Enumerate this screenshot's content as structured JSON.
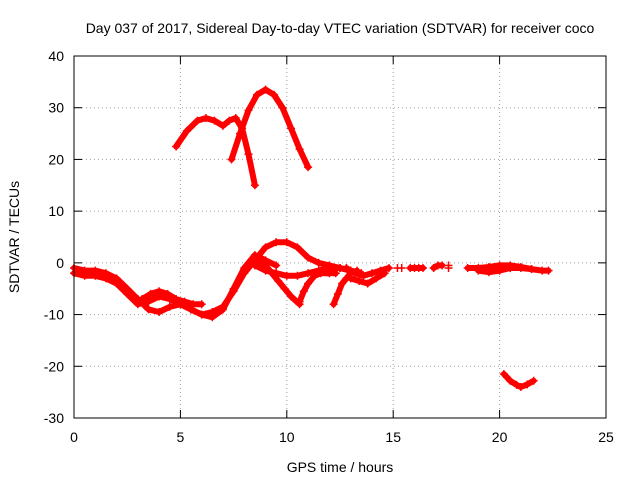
{
  "chart_data": {
    "type": "scatter",
    "title": "Day 037 of 2017, Sidereal Day-to-day VTEC variation (SDTVAR) for receiver coco",
    "xlabel": "GPS time / hours",
    "ylabel": "SDTVAR / TECUs",
    "xlim": [
      0,
      25
    ],
    "ylim": [
      -30,
      40
    ],
    "xticks": [
      0,
      5,
      10,
      15,
      20,
      25
    ],
    "yticks": [
      -30,
      -20,
      -10,
      0,
      10,
      20,
      30,
      40
    ],
    "grid": true,
    "marker": "plus",
    "colors": {
      "series": "#ff0000",
      "grid": "#a0a0a0",
      "axis": "#000000"
    },
    "series": [
      {
        "name": "arc-upper-left",
        "x": [
          4.8,
          5.3,
          5.8,
          6.2,
          6.6,
          7.0,
          7.3,
          7.6,
          7.9,
          8.2,
          8.5
        ],
        "y": [
          22.5,
          25.5,
          27.5,
          28,
          27.5,
          26.5,
          27.5,
          28,
          26,
          21,
          15
        ]
      },
      {
        "name": "arc-upper-right",
        "x": [
          7.4,
          7.8,
          8.2,
          8.6,
          9.0,
          9.4,
          9.8,
          10.2,
          10.6,
          11.0
        ],
        "y": [
          20,
          25,
          29.5,
          32.5,
          33.5,
          32.5,
          30,
          26,
          22,
          18.5
        ]
      },
      {
        "name": "arc-main-a",
        "x": [
          0.0,
          0.5,
          1.0,
          1.5,
          2.0,
          2.5,
          3.0,
          3.5,
          4.0,
          4.5,
          5.0,
          5.5,
          6.0,
          6.5,
          7.0,
          7.5,
          8.0,
          8.5,
          9.0,
          9.5
        ],
        "y": [
          -1,
          -1.5,
          -1.5,
          -2,
          -3,
          -5,
          -7,
          -9,
          -9.5,
          -8.5,
          -8,
          -9,
          -10,
          -10.5,
          -9,
          -5,
          -1,
          1.5,
          0.5,
          -0.5
        ]
      },
      {
        "name": "arc-main-b",
        "x": [
          0.0,
          0.5,
          1.0,
          1.5,
          2.0,
          2.5,
          3.0,
          3.5,
          4.0,
          4.5,
          5.0,
          5.5,
          6.0,
          6.5,
          7.0,
          7.5,
          8.0,
          8.5,
          9.0
        ],
        "y": [
          -2,
          -2.5,
          -2.5,
          -3,
          -4,
          -6,
          -8,
          -7.5,
          -6.5,
          -7,
          -8,
          -9,
          -10,
          -9.5,
          -8.5,
          -5.5,
          -2,
          0.5,
          -1
        ]
      },
      {
        "name": "arc-bump",
        "x": [
          3.2,
          3.6,
          4.0,
          4.4,
          4.8,
          5.2,
          5.6,
          6.0
        ],
        "y": [
          -7,
          -6,
          -5.5,
          -6,
          -7,
          -7.5,
          -8,
          -8
        ]
      },
      {
        "name": "arc-middle",
        "x": [
          8.6,
          9.0,
          9.5,
          10.0,
          10.5,
          11.0,
          11.5,
          12.0,
          12.5,
          13.0
        ],
        "y": [
          1,
          3,
          4,
          4,
          3,
          1,
          0,
          -0.5,
          -1,
          -1.5
        ]
      },
      {
        "name": "arc-middle-low",
        "x": [
          8.5,
          9.0,
          9.5,
          10.0,
          10.5,
          11.0,
          11.5,
          12.0,
          12.5,
          13.0,
          13.5
        ],
        "y": [
          -0.5,
          -1.5,
          -2,
          -2.5,
          -2.5,
          -2,
          -1.5,
          -1,
          -1,
          -1.5,
          -2
        ]
      },
      {
        "name": "arc-drop-a",
        "x": [
          8.7,
          9.0,
          9.3,
          9.6,
          9.9,
          10.2,
          10.6
        ],
        "y": [
          1,
          -0.5,
          -2,
          -3.5,
          -5,
          -6.5,
          -8
        ]
      },
      {
        "name": "arc-drop-b",
        "x": [
          10.6,
          10.8,
          11.0,
          11.3,
          11.6,
          12.0,
          12.3
        ],
        "y": [
          -7.5,
          -5.5,
          -4,
          -2.5,
          -2,
          -2,
          -2
        ]
      },
      {
        "name": "arc-drop-c",
        "x": [
          12.2,
          12.4,
          12.6,
          12.8,
          13.0,
          13.3
        ],
        "y": [
          -8,
          -6,
          -4,
          -3,
          -2,
          -1.5
        ]
      },
      {
        "name": "arc-right-a",
        "x": [
          12.8,
          13.2,
          13.6,
          14.0,
          14.4,
          14.8
        ],
        "y": [
          -1,
          -2,
          -2.5,
          -2,
          -1.5,
          -1
        ]
      },
      {
        "name": "arc-right-b",
        "x": [
          13.0,
          13.4,
          13.8,
          14.2,
          14.6
        ],
        "y": [
          -3,
          -3.5,
          -4,
          -3,
          -2
        ]
      },
      {
        "name": "arc-seg-1",
        "x": [
          15.8,
          16.0,
          16.2,
          16.4
        ],
        "y": [
          -1,
          -1,
          -1,
          -1
        ]
      },
      {
        "name": "arc-seg-2",
        "x": [
          16.9,
          17.1,
          17.3
        ],
        "y": [
          -1,
          -0.5,
          -0.5
        ]
      },
      {
        "name": "arc-right-long",
        "x": [
          18.5,
          19.0,
          19.5,
          20.0,
          20.5,
          21.0,
          21.5,
          22.0,
          22.3
        ],
        "y": [
          -1,
          -1,
          -0.8,
          -0.5,
          -0.5,
          -0.8,
          -1.2,
          -1.5,
          -1.5
        ]
      },
      {
        "name": "arc-right-long-b",
        "x": [
          19.0,
          19.5,
          20.0,
          20.5,
          21.0,
          21.5
        ],
        "y": [
          -1.5,
          -1.8,
          -1.5,
          -1,
          -1,
          -1.2
        ]
      },
      {
        "name": "arc-bottom",
        "x": [
          20.2,
          20.5,
          20.8,
          21.0,
          21.3,
          21.6
        ],
        "y": [
          -21.5,
          -22.8,
          -23.6,
          -24,
          -23.5,
          -22.8
        ]
      }
    ],
    "scatter_points": [
      {
        "x": 15.2,
        "y": -1
      },
      {
        "x": 15.4,
        "y": -1
      },
      {
        "x": 17.6,
        "y": -0.5
      },
      {
        "x": 17.6,
        "y": -1
      }
    ]
  }
}
